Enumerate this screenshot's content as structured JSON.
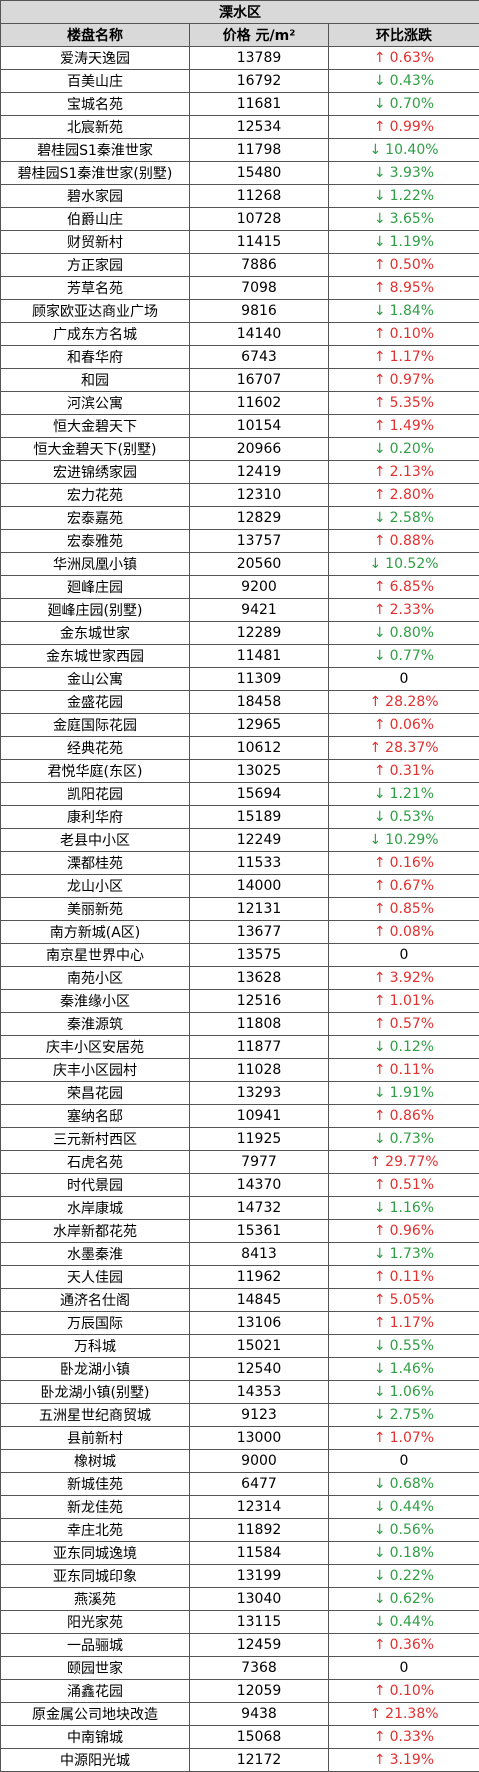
{
  "title": "溧水区",
  "headers": {
    "name": "楼盘名称",
    "price": "价格 元/m²",
    "change": "环比涨跌"
  },
  "colors": {
    "up": "#e0302f",
    "down": "#2f9e44",
    "header_bg": "#d9d9d9"
  },
  "rows": [
    {
      "name": "爱涛天逸园",
      "price": "13789",
      "dir": "up",
      "pct": "0.63%"
    },
    {
      "name": "百美山庄",
      "price": "16792",
      "dir": "down",
      "pct": "0.43%"
    },
    {
      "name": "宝城名苑",
      "price": "11681",
      "dir": "down",
      "pct": "0.70%"
    },
    {
      "name": "北宸新苑",
      "price": "12534",
      "dir": "up",
      "pct": "0.99%"
    },
    {
      "name": "碧桂园S1秦淮世家",
      "price": "11798",
      "dir": "down",
      "pct": "10.40%"
    },
    {
      "name": "碧桂园S1秦淮世家(别墅)",
      "price": "15480",
      "dir": "down",
      "pct": "3.93%"
    },
    {
      "name": "碧水家园",
      "price": "11268",
      "dir": "down",
      "pct": "1.22%"
    },
    {
      "name": "伯爵山庄",
      "price": "10728",
      "dir": "down",
      "pct": "3.65%"
    },
    {
      "name": "财贸新村",
      "price": "11415",
      "dir": "down",
      "pct": "1.19%"
    },
    {
      "name": "方正家园",
      "price": "7886",
      "dir": "up",
      "pct": "0.50%"
    },
    {
      "name": "芳草名苑",
      "price": "7098",
      "dir": "up",
      "pct": "8.95%"
    },
    {
      "name": "顾家欧亚达商业广场",
      "price": "9816",
      "dir": "down",
      "pct": "1.84%"
    },
    {
      "name": "广成东方名城",
      "price": "14140",
      "dir": "up",
      "pct": "0.10%"
    },
    {
      "name": "和春华府",
      "price": "6743",
      "dir": "up",
      "pct": "1.17%"
    },
    {
      "name": "和园",
      "price": "16707",
      "dir": "up",
      "pct": "0.97%"
    },
    {
      "name": "河滨公寓",
      "price": "11602",
      "dir": "up",
      "pct": "5.35%"
    },
    {
      "name": "恒大金碧天下",
      "price": "10154",
      "dir": "up",
      "pct": "1.49%"
    },
    {
      "name": "恒大金碧天下(别墅)",
      "price": "20966",
      "dir": "down",
      "pct": "0.20%"
    },
    {
      "name": "宏进锦绣家园",
      "price": "12419",
      "dir": "up",
      "pct": "2.13%"
    },
    {
      "name": "宏力花苑",
      "price": "12310",
      "dir": "up",
      "pct": "2.80%"
    },
    {
      "name": "宏泰嘉苑",
      "price": "12829",
      "dir": "down",
      "pct": "2.58%"
    },
    {
      "name": "宏泰雅苑",
      "price": "13757",
      "dir": "up",
      "pct": "0.88%"
    },
    {
      "name": "华洲凤凰小镇",
      "price": "20560",
      "dir": "down",
      "pct": "10.52%"
    },
    {
      "name": "廻峰庄园",
      "price": "9200",
      "dir": "up",
      "pct": "6.85%"
    },
    {
      "name": "廻峰庄园(别墅)",
      "price": "9421",
      "dir": "up",
      "pct": "2.33%"
    },
    {
      "name": "金东城世家",
      "price": "12289",
      "dir": "down",
      "pct": "0.80%"
    },
    {
      "name": "金东城世家西园",
      "price": "11481",
      "dir": "down",
      "pct": "0.77%"
    },
    {
      "name": "金山公寓",
      "price": "11309",
      "dir": "none",
      "pct": "0"
    },
    {
      "name": "金盛花园",
      "price": "18458",
      "dir": "up",
      "pct": "28.28%"
    },
    {
      "name": "金庭国际花园",
      "price": "12965",
      "dir": "up",
      "pct": "0.06%"
    },
    {
      "name": "经典花苑",
      "price": "10612",
      "dir": "up",
      "pct": "28.37%"
    },
    {
      "name": "君悦华庭(东区)",
      "price": "13025",
      "dir": "up",
      "pct": "0.31%"
    },
    {
      "name": "凯阳花园",
      "price": "15694",
      "dir": "down",
      "pct": "1.21%"
    },
    {
      "name": "康利华府",
      "price": "15189",
      "dir": "down",
      "pct": "0.53%"
    },
    {
      "name": "老县中小区",
      "price": "12249",
      "dir": "down",
      "pct": "10.29%"
    },
    {
      "name": "溧都桂苑",
      "price": "11533",
      "dir": "up",
      "pct": "0.16%"
    },
    {
      "name": "龙山小区",
      "price": "14000",
      "dir": "up",
      "pct": "0.67%"
    },
    {
      "name": "美丽新苑",
      "price": "12131",
      "dir": "up",
      "pct": "0.85%"
    },
    {
      "name": "南方新城(A区)",
      "price": "13677",
      "dir": "up",
      "pct": "0.08%"
    },
    {
      "name": "南京星世界中心",
      "price": "13575",
      "dir": "none",
      "pct": "0"
    },
    {
      "name": "南苑小区",
      "price": "13628",
      "dir": "up",
      "pct": "3.92%"
    },
    {
      "name": "秦淮缘小区",
      "price": "12516",
      "dir": "up",
      "pct": "1.01%"
    },
    {
      "name": "秦淮源筑",
      "price": "11808",
      "dir": "up",
      "pct": "0.57%"
    },
    {
      "name": "庆丰小区安居苑",
      "price": "11877",
      "dir": "down",
      "pct": "0.12%"
    },
    {
      "name": "庆丰小区园村",
      "price": "11028",
      "dir": "up",
      "pct": "0.11%"
    },
    {
      "name": "荣昌花园",
      "price": "13293",
      "dir": "down",
      "pct": "1.91%"
    },
    {
      "name": "塞纳名邸",
      "price": "10941",
      "dir": "up",
      "pct": "0.86%"
    },
    {
      "name": "三元新村西区",
      "price": "11925",
      "dir": "down",
      "pct": "0.73%"
    },
    {
      "name": "石虎名苑",
      "price": "7977",
      "dir": "up",
      "pct": "29.77%"
    },
    {
      "name": "时代景园",
      "price": "14370",
      "dir": "up",
      "pct": "0.51%"
    },
    {
      "name": "水岸康城",
      "price": "14732",
      "dir": "down",
      "pct": "1.16%"
    },
    {
      "name": "水岸新都花苑",
      "price": "15361",
      "dir": "up",
      "pct": "0.96%"
    },
    {
      "name": "水墨秦淮",
      "price": "8413",
      "dir": "down",
      "pct": "1.73%"
    },
    {
      "name": "天人佳园",
      "price": "11962",
      "dir": "up",
      "pct": "0.11%"
    },
    {
      "name": "通济名仕阁",
      "price": "14845",
      "dir": "up",
      "pct": "5.05%"
    },
    {
      "name": "万辰国际",
      "price": "13106",
      "dir": "up",
      "pct": "1.17%"
    },
    {
      "name": "万科城",
      "price": "15021",
      "dir": "down",
      "pct": "0.55%"
    },
    {
      "name": "卧龙湖小镇",
      "price": "12540",
      "dir": "down",
      "pct": "1.46%"
    },
    {
      "name": "卧龙湖小镇(别墅)",
      "price": "14353",
      "dir": "down",
      "pct": "1.06%"
    },
    {
      "name": "五洲星世纪商贸城",
      "price": "9123",
      "dir": "down",
      "pct": "2.75%"
    },
    {
      "name": "县前新村",
      "price": "13000",
      "dir": "up",
      "pct": "1.07%"
    },
    {
      "name": "橡树城",
      "price": "9000",
      "dir": "none",
      "pct": "0"
    },
    {
      "name": "新城佳苑",
      "price": "6477",
      "dir": "down",
      "pct": "0.68%"
    },
    {
      "name": "新龙佳苑",
      "price": "12314",
      "dir": "down",
      "pct": "0.44%"
    },
    {
      "name": "幸庄北苑",
      "price": "11892",
      "dir": "down",
      "pct": "0.56%"
    },
    {
      "name": "亚东同城逸境",
      "price": "11584",
      "dir": "down",
      "pct": "0.18%"
    },
    {
      "name": "亚东同城印象",
      "price": "13199",
      "dir": "down",
      "pct": "0.22%"
    },
    {
      "name": "燕溪苑",
      "price": "13040",
      "dir": "down",
      "pct": "0.62%"
    },
    {
      "name": "阳光家苑",
      "price": "13115",
      "dir": "down",
      "pct": "0.44%"
    },
    {
      "name": "一品骊城",
      "price": "12459",
      "dir": "up",
      "pct": "0.36%"
    },
    {
      "name": "颐园世家",
      "price": "7368",
      "dir": "none",
      "pct": "0"
    },
    {
      "name": "涌鑫花园",
      "price": "12059",
      "dir": "up",
      "pct": "0.10%"
    },
    {
      "name": "原金属公司地块改造",
      "price": "9438",
      "dir": "up",
      "pct": "21.38%"
    },
    {
      "name": "中南锦城",
      "price": "15068",
      "dir": "up",
      "pct": "0.33%"
    },
    {
      "name": "中源阳光城",
      "price": "12172",
      "dir": "up",
      "pct": "3.19%"
    }
  ]
}
